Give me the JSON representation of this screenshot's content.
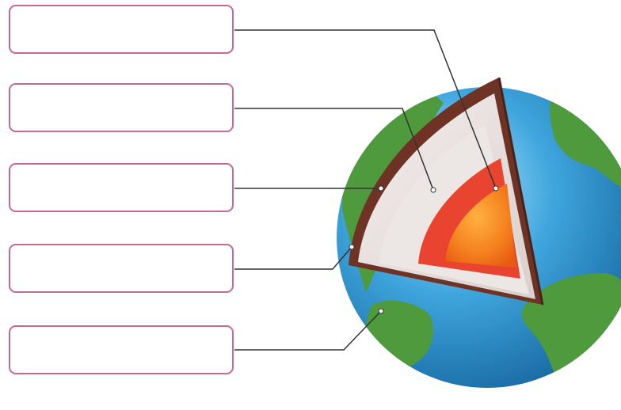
{
  "diagram": {
    "answer_boxes": [
      {
        "id": "box-1",
        "text": "",
        "target": "inner-core"
      },
      {
        "id": "box-2",
        "text": "",
        "target": "outer-core"
      },
      {
        "id": "box-3",
        "text": "",
        "target": "mantle"
      },
      {
        "id": "box-4",
        "text": "",
        "target": "crust"
      },
      {
        "id": "box-5",
        "text": "",
        "target": "surface"
      }
    ]
  },
  "colors": {
    "box_border": "#c46b8f",
    "ocean": "#2f97cf",
    "land": "#4e9a3c",
    "crust": "#6e3324",
    "mantle": "#e6dedc",
    "outer_core": "#e8442f",
    "inner_core": "#f58a1f",
    "leader_line": "#333333"
  }
}
